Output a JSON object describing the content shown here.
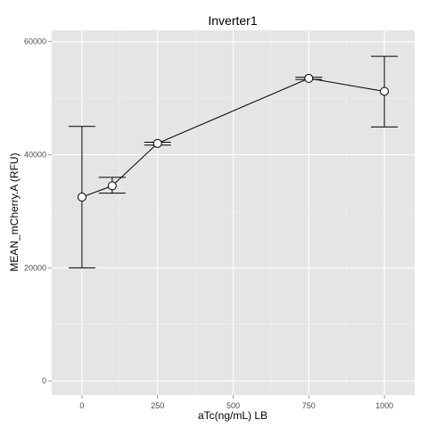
{
  "chart_data": {
    "type": "line",
    "title": "Inverter1",
    "xlabel": "aTc(ng/mL) LB",
    "ylabel": "MEAN_mCherry.A  (RFU)",
    "xlim": [
      -100,
      1100
    ],
    "ylim": [
      -2500,
      62000
    ],
    "x_ticks": [
      0,
      250,
      500,
      750,
      1000
    ],
    "x_tick_labels": [
      "0",
      "250",
      "500",
      "750",
      "1000"
    ],
    "y_ticks": [
      0,
      20000,
      40000,
      60000
    ],
    "y_tick_labels": [
      "0",
      "20000",
      "40000",
      "60000"
    ],
    "grid": true,
    "points": [
      {
        "x": 0,
        "y": 32500,
        "ymin": 20000,
        "ymax": 45000
      },
      {
        "x": 100,
        "y": 34500,
        "ymin": 33200,
        "ymax": 36000
      },
      {
        "x": 250,
        "y": 42000,
        "ymin": 41700,
        "ymax": 42200
      },
      {
        "x": 750,
        "y": 53500,
        "ymin": 53300,
        "ymax": 53700
      },
      {
        "x": 1000,
        "y": 51200,
        "ymin": 44900,
        "ymax": 57400
      }
    ]
  }
}
